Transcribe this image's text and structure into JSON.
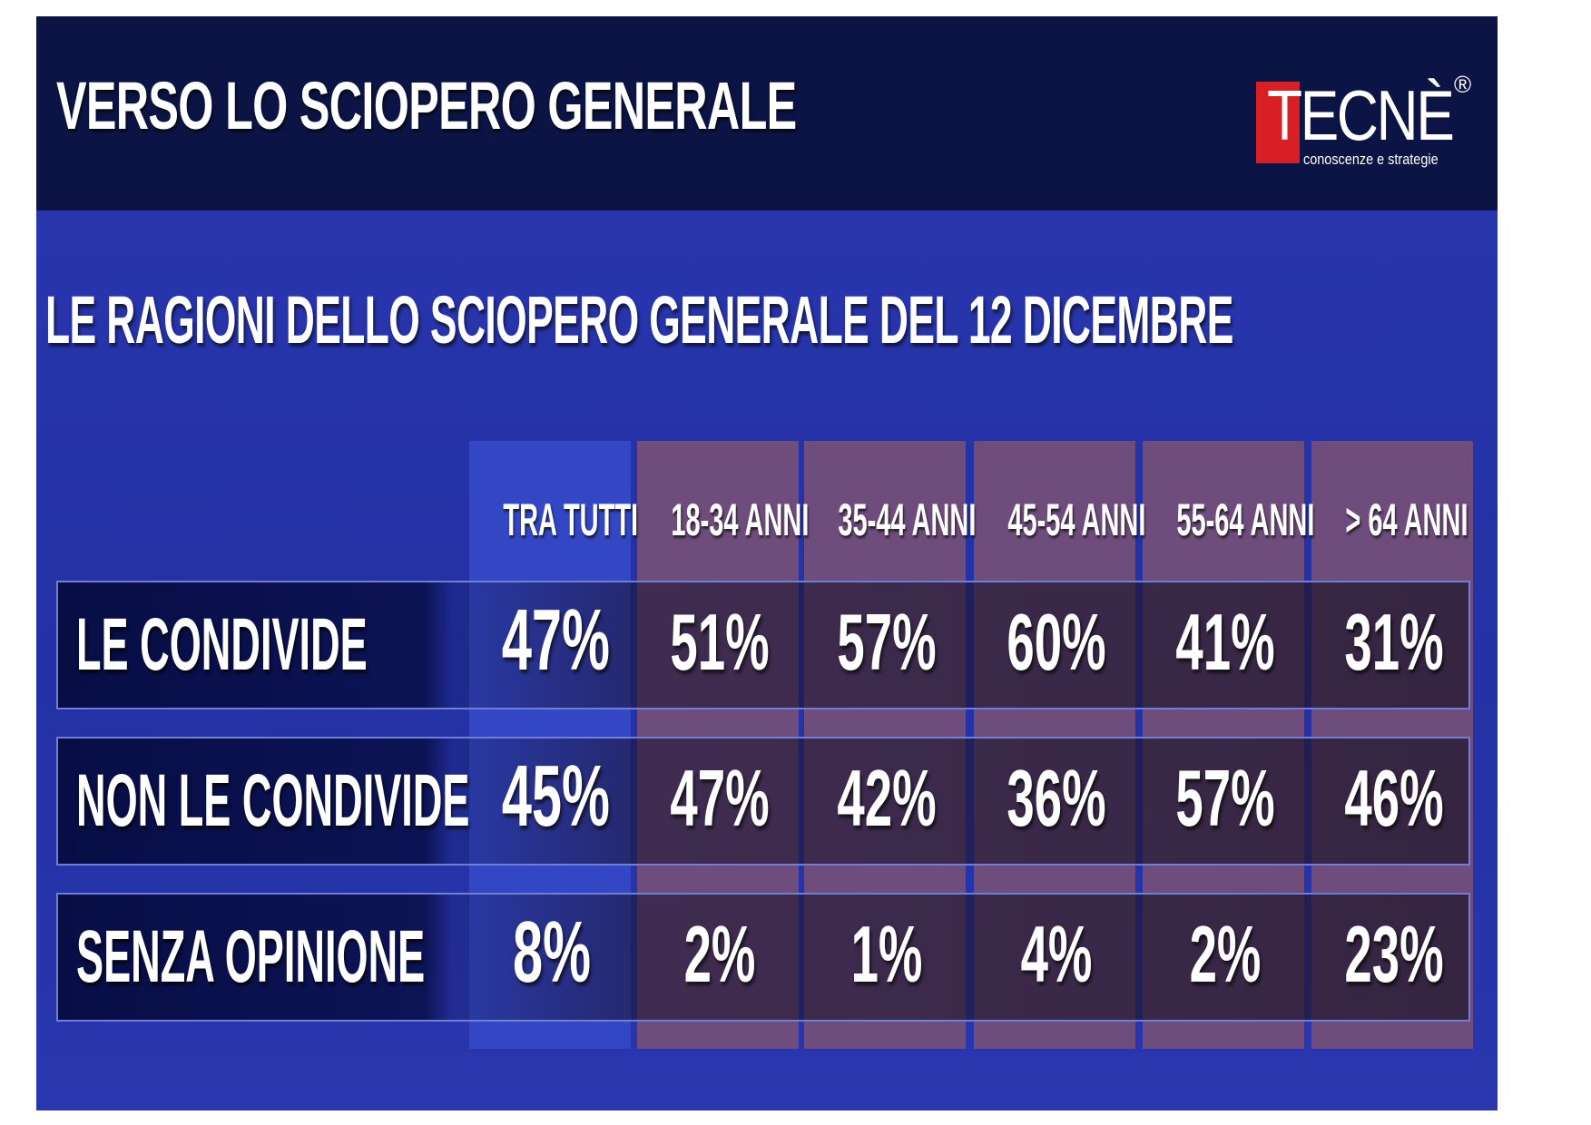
{
  "header": {
    "title": "VERSO LO SCIOPERO GENERALE",
    "logo": {
      "word": "TECNÈ",
      "registered": "®",
      "tagline": "conoscenze e strategie"
    }
  },
  "subtitle": "LE RAGIONI DELLO SCIOPERO GENERALE DEL 12 DICEMBRE",
  "colors": {
    "header_bg": "#0b1444",
    "slide_bg": "#2a37b0",
    "col_all": "#3346c4",
    "col_age": "#6e4c7c",
    "logo_red": "#d81f26"
  },
  "chart_data": {
    "type": "table",
    "title": "LE RAGIONI DELLO SCIOPERO GENERALE DEL 12 DICEMBRE",
    "columns": [
      "TRA TUTTI",
      "18-34 ANNI",
      "35-44 ANNI",
      "45-54 ANNI",
      "55-64 ANNI",
      "> 64 ANNI"
    ],
    "rows": [
      {
        "label": "LE CONDIVIDE",
        "values": [
          "47%",
          "51%",
          "57%",
          "60%",
          "41%",
          "31%"
        ]
      },
      {
        "label": "NON LE CONDIVIDE",
        "values": [
          "45%",
          "47%",
          "42%",
          "36%",
          "57%",
          "46%"
        ]
      },
      {
        "label": "SENZA OPINIONE",
        "values": [
          "8%",
          "2%",
          "1%",
          "4%",
          "2%",
          "23%"
        ]
      }
    ]
  }
}
